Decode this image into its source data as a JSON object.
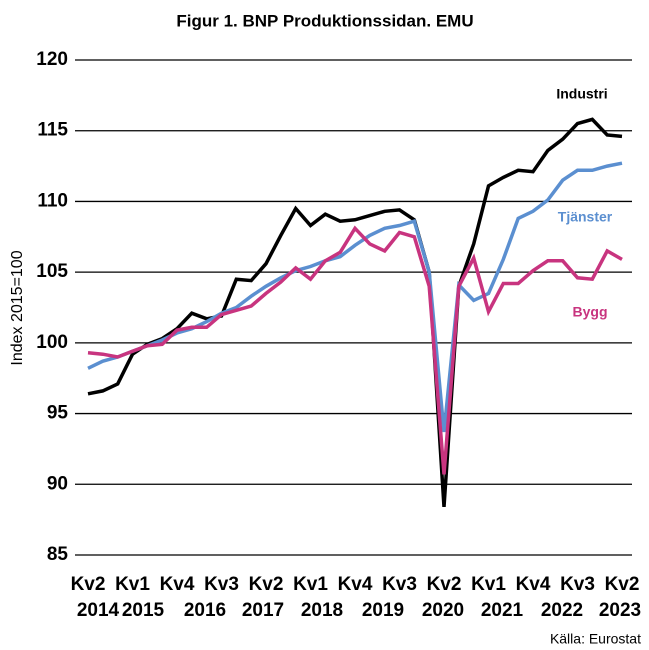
{
  "chart_data": {
    "type": "line",
    "title": "Figur 1. BNP Produktionssidan. EMU",
    "y_label": "Index 2015=100",
    "source": "Källa: Eurostat",
    "categories": [
      "Kv2",
      null,
      null,
      "Kv1",
      null,
      null,
      "Kv4",
      null,
      null,
      "Kv3",
      null,
      null,
      "Kv2",
      null,
      null,
      "Kv1",
      null,
      null,
      "Kv4",
      null,
      null,
      "Kv3",
      null,
      null,
      "Kv2",
      null,
      null,
      "Kv1",
      null,
      null,
      "Kv4",
      null,
      null,
      "Kv3",
      null,
      null,
      "Kv2"
    ],
    "year_labels": [
      "2014",
      "2015",
      "2016",
      "2017",
      "2018",
      "2019",
      "2020",
      "2021",
      "2022",
      "2023"
    ],
    "ylim": [
      85,
      120
    ],
    "yticks": [
      85,
      90,
      95,
      100,
      105,
      110,
      115,
      120
    ],
    "grid": true,
    "series": [
      {
        "name": "Industri",
        "color": "#000000",
        "values": [
          96.4,
          96.6,
          97.1,
          99.2,
          99.9,
          100.3,
          101.0,
          102.1,
          101.7,
          101.9,
          104.5,
          104.4,
          105.6,
          107.6,
          109.5,
          108.3,
          109.1,
          108.6,
          108.7,
          109.0,
          109.3,
          109.4,
          108.7,
          105.0,
          88.4,
          104.0,
          107.0,
          111.1,
          111.7,
          112.2,
          112.1,
          113.6,
          114.4,
          115.5,
          115.8,
          114.7,
          114.6
        ]
      },
      {
        "name": "Tjänster",
        "color": "#5b8fd0",
        "values": [
          98.2,
          98.7,
          99.0,
          99.4,
          99.8,
          100.2,
          100.7,
          101.0,
          101.5,
          102.1,
          102.5,
          103.3,
          104.0,
          104.6,
          105.1,
          105.4,
          105.8,
          106.1,
          106.9,
          107.6,
          108.1,
          108.3,
          108.6,
          105.0,
          93.7,
          104.1,
          103.0,
          103.5,
          105.9,
          108.8,
          109.3,
          110.1,
          111.5,
          112.2,
          112.2,
          112.5,
          112.7
        ]
      },
      {
        "name": "Bygg",
        "color": "#c8347f",
        "values": [
          99.3,
          99.2,
          99.0,
          99.4,
          99.8,
          99.9,
          100.9,
          101.1,
          101.1,
          102.0,
          102.3,
          102.6,
          103.5,
          104.3,
          105.3,
          104.5,
          105.8,
          106.4,
          108.1,
          107.0,
          106.5,
          107.8,
          107.5,
          104.0,
          90.7,
          104.0,
          106.0,
          102.2,
          104.2,
          104.2,
          105.1,
          105.8,
          105.8,
          104.6,
          104.5,
          106.5,
          105.9
        ]
      }
    ]
  }
}
